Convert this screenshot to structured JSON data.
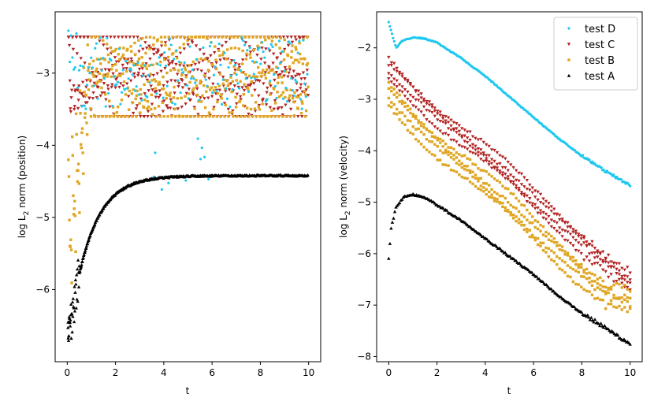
{
  "chart_data": [
    {
      "type": "scatter",
      "id": "left",
      "xlabel": "t",
      "ylabel_prefix": "log L",
      "ylabel_sub": "2",
      "ylabel_suffix": " norm (position)",
      "xlim": [
        -0.5,
        10.5
      ],
      "ylim": [
        -7.0,
        -2.15
      ],
      "xticks": [
        0,
        2,
        4,
        6,
        8,
        10
      ],
      "xtick_labels": [
        "0",
        "2",
        "4",
        "6",
        "8",
        "10"
      ],
      "yticks": [
        -6,
        -5,
        -4,
        -3
      ],
      "ytick_labels": [
        "−6",
        "−5",
        "−4",
        "−3"
      ],
      "legend": false,
      "series": [
        {
          "name": "test D",
          "marker": "circle",
          "color": "#1ec8f0",
          "description": "noisy scatter around -3.3 to -2.4, a few outliers down to -5",
          "t_range": [
            0.05,
            10
          ],
          "count": 180
        },
        {
          "name": "test C",
          "marker": "triangle-down",
          "color": "#b22222",
          "description": "bounded oscillating bands between -3.6 and -2.5",
          "t_range": [
            0.05,
            10
          ],
          "count": 500
        },
        {
          "name": "test B",
          "marker": "square",
          "color": "#dfa623",
          "description": "bounded oscillating bands between -3.6 and -2.5, rising from -5.1 near t=0",
          "t_range": [
            0.05,
            10
          ],
          "count": 500
        },
        {
          "name": "test A",
          "marker": "triangle-up",
          "color": "#000000",
          "description": "rises from -6.8 at t=0 and saturates near -4.42",
          "t_range": [
            0.03,
            10
          ],
          "count": 400,
          "start_value": -6.8,
          "plateau_value": -4.42
        }
      ]
    },
    {
      "type": "scatter",
      "id": "right",
      "xlabel": "t",
      "ylabel_prefix": "log L",
      "ylabel_sub": "2",
      "ylabel_suffix": " norm (velocity)",
      "xlim": [
        -0.5,
        10.5
      ],
      "ylim": [
        -8.1,
        -1.3
      ],
      "xticks": [
        0,
        2,
        4,
        6,
        8,
        10
      ],
      "xtick_labels": [
        "0",
        "2",
        "4",
        "6",
        "8",
        "10"
      ],
      "yticks": [
        -8,
        -7,
        -6,
        -5,
        -4,
        -3,
        -2
      ],
      "ytick_labels": [
        "−8",
        "−7",
        "−6",
        "−5",
        "−4",
        "−3",
        "−2"
      ],
      "legend": true,
      "legend_location": "top-right",
      "series": [
        {
          "name": "test D",
          "marker": "circle",
          "color": "#1ec8f0",
          "points": [
            [
              0.0,
              -1.5
            ],
            [
              0.3,
              -2.0
            ],
            [
              0.6,
              -1.85
            ],
            [
              1.0,
              -1.8
            ],
            [
              1.5,
              -1.82
            ],
            [
              2.0,
              -1.9
            ],
            [
              3.0,
              -2.2
            ],
            [
              4.0,
              -2.55
            ],
            [
              5.0,
              -2.95
            ],
            [
              6.0,
              -3.35
            ],
            [
              7.0,
              -3.75
            ],
            [
              8.0,
              -4.1
            ],
            [
              9.0,
              -4.4
            ],
            [
              10.0,
              -4.68
            ]
          ]
        },
        {
          "name": "test C",
          "marker": "triangle-down",
          "color": "#b22222",
          "points": [
            [
              0.0,
              -2.4
            ],
            [
              1.0,
              -2.85
            ],
            [
              2.0,
              -3.3
            ],
            [
              3.0,
              -3.7
            ],
            [
              4.0,
              -4.1
            ],
            [
              5.0,
              -4.5
            ],
            [
              6.0,
              -4.95
            ],
            [
              7.0,
              -5.35
            ],
            [
              8.0,
              -5.75
            ],
            [
              9.0,
              -6.15
            ],
            [
              10.0,
              -6.55
            ]
          ]
        },
        {
          "name": "test B",
          "marker": "square",
          "color": "#dfa623",
          "points": [
            [
              0.0,
              -2.9
            ],
            [
              1.0,
              -3.4
            ],
            [
              2.0,
              -3.85
            ],
            [
              3.0,
              -4.25
            ],
            [
              4.0,
              -4.7
            ],
            [
              5.0,
              -5.1
            ],
            [
              6.0,
              -5.55
            ],
            [
              7.0,
              -5.95
            ],
            [
              8.0,
              -6.35
            ],
            [
              9.0,
              -6.75
            ],
            [
              10.0,
              -6.95
            ]
          ]
        },
        {
          "name": "test A",
          "marker": "triangle-up",
          "color": "#000000",
          "points": [
            [
              0.0,
              -6.1
            ],
            [
              0.1,
              -5.5
            ],
            [
              0.3,
              -5.1
            ],
            [
              0.6,
              -4.9
            ],
            [
              1.0,
              -4.85
            ],
            [
              1.5,
              -4.9
            ],
            [
              2.0,
              -5.05
            ],
            [
              3.0,
              -5.35
            ],
            [
              4.0,
              -5.7
            ],
            [
              5.0,
              -6.05
            ],
            [
              6.0,
              -6.4
            ],
            [
              7.0,
              -6.8
            ],
            [
              8.0,
              -7.15
            ],
            [
              9.0,
              -7.45
            ],
            [
              10.0,
              -7.75
            ]
          ]
        }
      ]
    }
  ]
}
